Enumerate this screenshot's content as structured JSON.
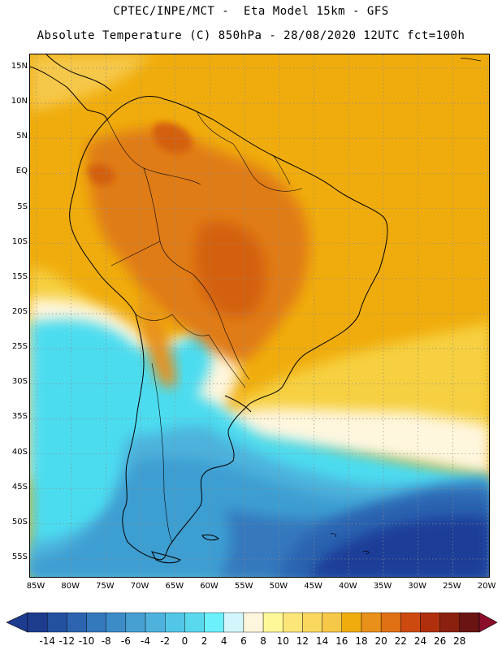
{
  "header": {
    "line1": "CPTEC/INPE/MCT -  Eta Model 15km - GFS",
    "line2": "Absolute Temperature (C) 850hPa - 28/08/2020 12UTC fct=100h"
  },
  "map": {
    "region": "South America",
    "lat_labels": [
      "15N",
      "10N",
      "5N",
      "EQ",
      "5S",
      "10S",
      "15S",
      "20S",
      "25S",
      "30S",
      "35S",
      "40S",
      "45S",
      "50S",
      "55S"
    ],
    "lon_labels": [
      "85W",
      "80W",
      "75W",
      "70W",
      "65W",
      "60W",
      "55W",
      "50W",
      "45W",
      "40W",
      "35W",
      "30W",
      "25W",
      "20W"
    ],
    "field_bands": [
      {
        "name": "warm-north",
        "color": "#f0ac0c"
      },
      {
        "name": "hot-core",
        "color": "#e07c14"
      },
      {
        "name": "hottest-core",
        "color": "#d46010"
      },
      {
        "name": "mild",
        "color": "#f6d040"
      },
      {
        "name": "cool-white",
        "color": "#fff6de"
      },
      {
        "name": "cyan",
        "color": "#4cdcf0"
      },
      {
        "name": "medium-blue",
        "color": "#3c9ed2"
      },
      {
        "name": "deep-blue",
        "color": "#1e3c98"
      }
    ]
  },
  "colorbar": {
    "labels": [
      "-14",
      "-12",
      "-10",
      "-8",
      "-6",
      "-4",
      "-2",
      "0",
      "2",
      "4",
      "6",
      "8",
      "10",
      "12",
      "14",
      "16",
      "18",
      "20",
      "22",
      "24",
      "26",
      "28"
    ],
    "colors": [
      "#1e3c8e",
      "#2450a0",
      "#2c64b0",
      "#3478be",
      "#3c8cc8",
      "#46a0d2",
      "#4eb2dc",
      "#52c6e6",
      "#5ad8ee",
      "#6cf0fa",
      "#d2f6fc",
      "#fef6dc",
      "#fef898",
      "#fce67a",
      "#fad860",
      "#f6c848",
      "#f0ac0c",
      "#e8901a",
      "#e07014",
      "#cc4a10",
      "#b0300e",
      "#8a200e",
      "#6a1414"
    ],
    "unit": "C"
  }
}
